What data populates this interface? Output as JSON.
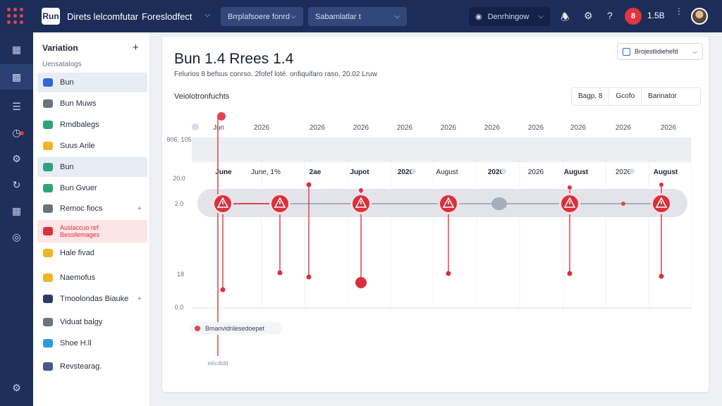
{
  "topbar": {
    "title": "Direts lelcomfutar",
    "project": "Foreslodfect",
    "select1": "Brrplafsoere fonrd",
    "select2": "Sabamlatlar t",
    "env": "Denrhingow",
    "notif_count": "8",
    "version": "1.5B"
  },
  "app_logo": "Run",
  "sidebar": {
    "heading": "Variation",
    "sub": "Uensatalogs",
    "items": [
      {
        "label": "Bun",
        "color": "#2f68d8"
      },
      {
        "label": "Bun Muws",
        "color": "#6b7280"
      },
      {
        "label": "Rmdbalegs",
        "color": "#2fa37a"
      },
      {
        "label": "Suus Arile",
        "color": "#f0b429"
      },
      {
        "label": "Bun",
        "color": "#2fa37a"
      },
      {
        "label": "Bun Gvuer",
        "color": "#2fa37a"
      },
      {
        "label": "Remoc fiocs",
        "color": "#6b7280"
      },
      {
        "label": "Ausiaccuo ref\nBessilemages",
        "color": "#d8313e"
      },
      {
        "label": "Hale fivad",
        "color": "#f0b429"
      },
      {
        "label": "Naemofus",
        "color": "#f0b429"
      },
      {
        "label": "Tmoolondas Biauke",
        "color": "#2b3a67"
      },
      {
        "label": "Viduat balgy",
        "color": "#6b7280"
      },
      {
        "label": "Shoe H.ll",
        "color": "#2f9ae0"
      },
      {
        "label": "Revstearag.",
        "color": "#4a5780"
      }
    ]
  },
  "page": {
    "title": "Bun 1.4 Rrees 1.4",
    "subtitle": "Felurios 8 befsus conrso. 2fofef loté. onfiquifaro raso, 20.02 Lruw",
    "button": "Brojestlidiehefd",
    "section": "Veiolotronfuchts",
    "controls": [
      "Bagp, 8",
      "Gcofo",
      "Barinator"
    ]
  },
  "timeline": {
    "year_labels": [
      "Jun",
      "2026",
      "2026",
      "2026",
      "2026",
      "2026",
      "2026",
      "2026",
      "2026",
      "2026",
      "2026"
    ],
    "month_labels": [
      "June",
      "June, 1%",
      "2ae",
      "Jupot",
      "2026",
      "August",
      "2026",
      "2026",
      "August",
      "2026",
      "August"
    ],
    "y_labels": [
      "806,\n105",
      "20.0",
      "2.0",
      "18",
      "0.0"
    ],
    "incident_icons": 6,
    "footer_chip": "Bmanvidnlesedoepet",
    "footer_small": "eiiicdidd"
  }
}
